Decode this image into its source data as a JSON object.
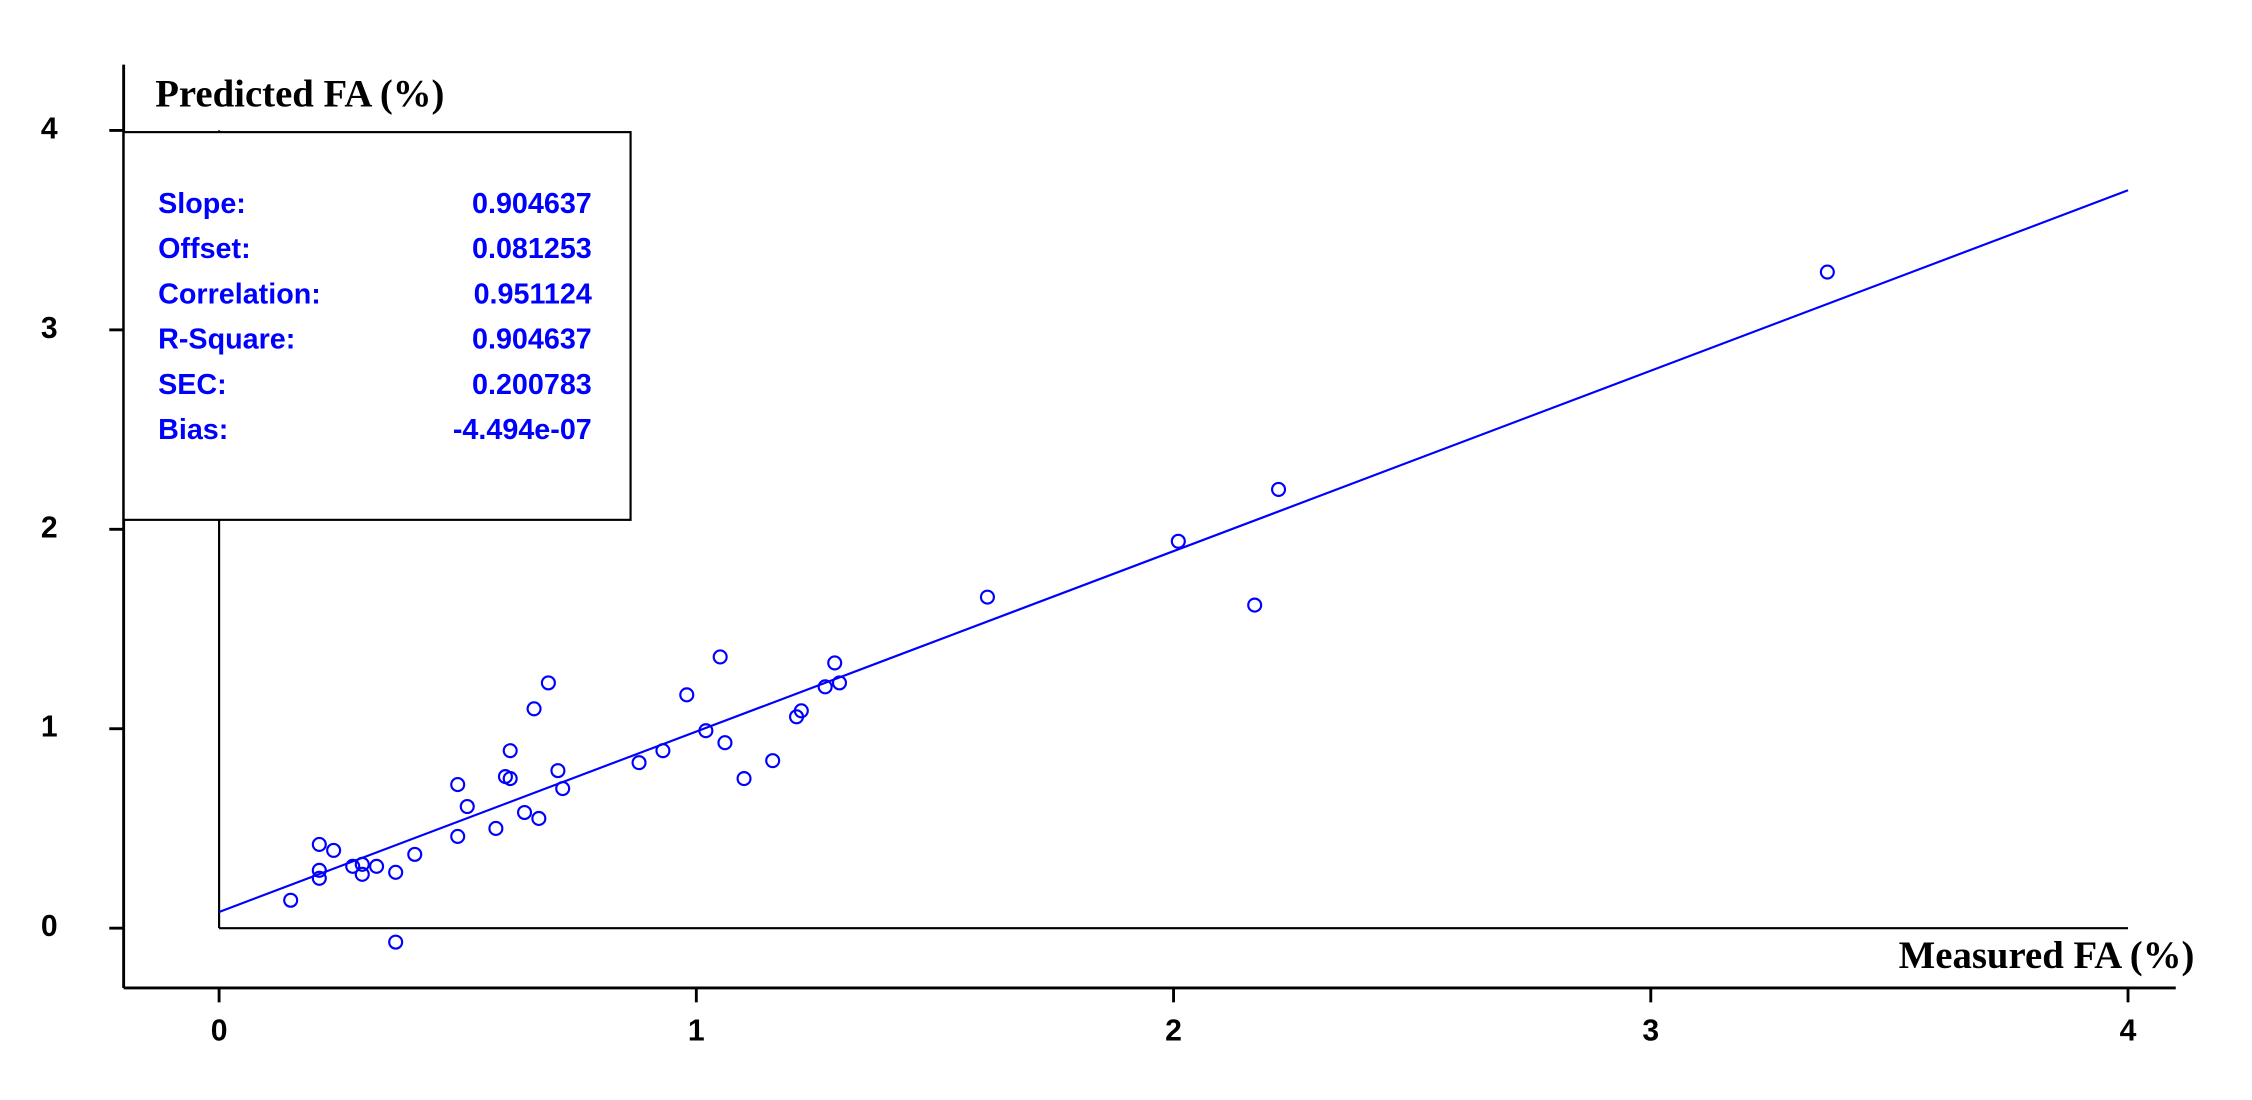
{
  "chart_data": {
    "type": "scatter",
    "y_label": "Predicted FA (%)",
    "x_label": "Measured FA (%)",
    "xlim": [
      -0.2,
      4.1
    ],
    "ylim": [
      -0.3,
      4.33
    ],
    "xticks": [
      0,
      1,
      2,
      3,
      4
    ],
    "yticks": [
      0,
      1,
      2,
      3,
      4
    ],
    "color": "#0000ff",
    "x": [
      0.15,
      0.21,
      0.21,
      0.21,
      0.24,
      0.28,
      0.3,
      0.3,
      0.33,
      0.37,
      0.37,
      0.41,
      0.5,
      0.5,
      0.52,
      0.58,
      0.6,
      0.61,
      0.61,
      0.64,
      0.66,
      0.67,
      0.69,
      0.71,
      0.72,
      0.88,
      0.93,
      0.98,
      1.02,
      1.05,
      1.06,
      1.1,
      1.16,
      1.21,
      1.22,
      1.27,
      1.29,
      1.3,
      1.61,
      2.01,
      2.17,
      2.22,
      3.37
    ],
    "values": [
      0.14,
      0.42,
      0.29,
      0.25,
      0.39,
      0.31,
      0.32,
      0.27,
      0.31,
      0.28,
      -0.07,
      0.37,
      0.72,
      0.46,
      0.61,
      0.5,
      0.76,
      0.75,
      0.89,
      0.58,
      1.1,
      0.55,
      1.23,
      0.79,
      0.7,
      0.83,
      0.89,
      1.17,
      0.99,
      1.36,
      0.93,
      0.75,
      0.84,
      1.06,
      1.09,
      1.21,
      1.33,
      1.23,
      1.66,
      1.94,
      1.62,
      2.2,
      3.29
    ],
    "stats": [
      {
        "name": "Slope:",
        "value": 0.904637
      },
      {
        "name": "Offset:",
        "value": 0.081253
      },
      {
        "name": "Correlation:",
        "value": 0.951124
      },
      {
        "name": "R-Square:",
        "value": 0.904637
      },
      {
        "name": "SEC:",
        "value": 0.200783
      },
      {
        "name": "Bias:",
        "value": -4.494e-07,
        "value_label": "-4.494e-07"
      }
    ]
  }
}
